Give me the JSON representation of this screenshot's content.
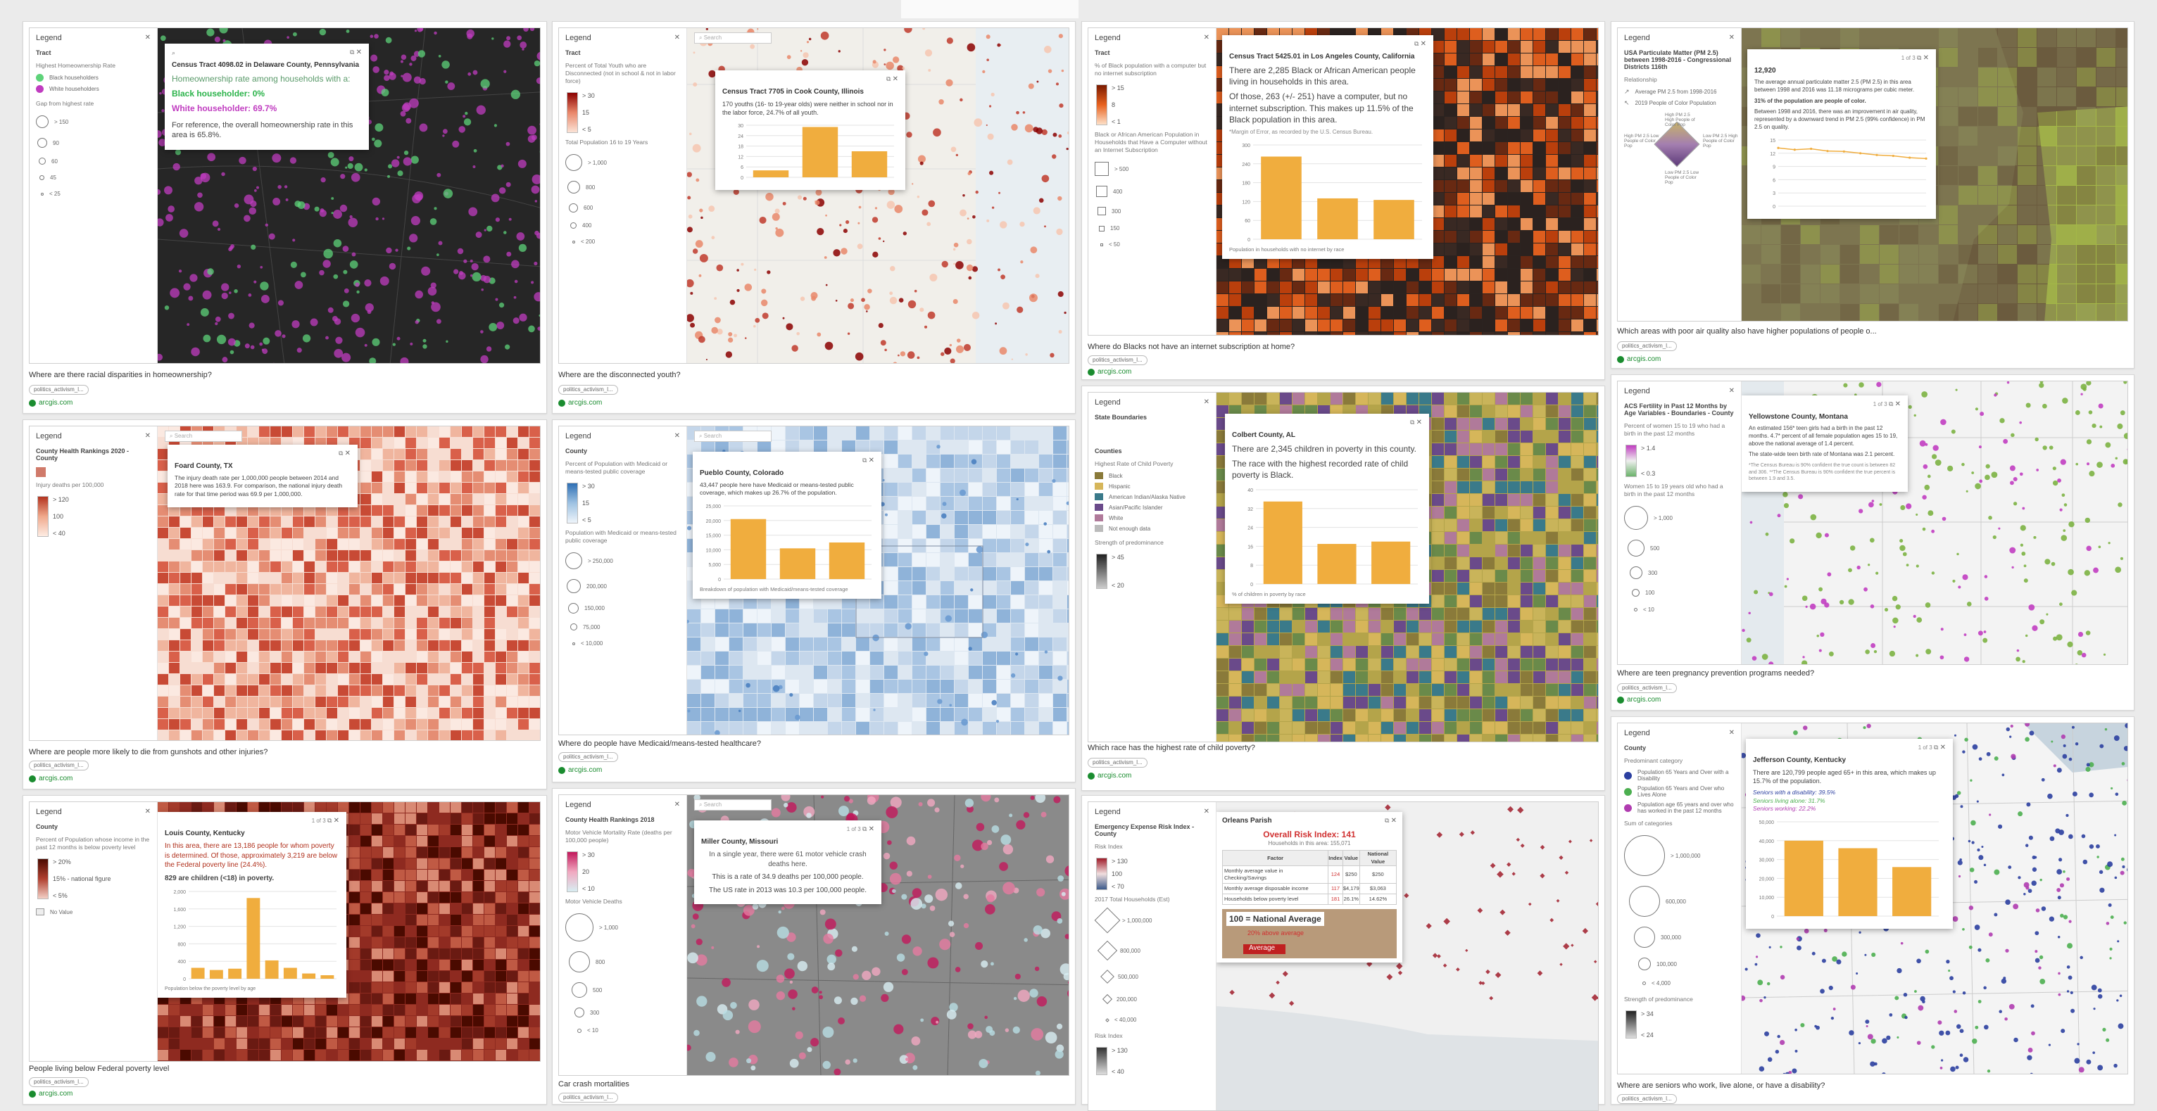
{
  "cards": [
    {
      "caption": "Where are there racial disparities in homeownership?",
      "tag": "politics_activism_l...",
      "link": "arcgis.com",
      "legend": {
        "title": "Legend",
        "layer": "Tract",
        "desc": "Highest Homeownership Rate",
        "items": [
          "Black householders",
          "White householders"
        ],
        "desc2": "Gap from highest rate",
        "sizes": [
          "> 150",
          "90",
          "60",
          "45",
          "< 25"
        ]
      },
      "popup": {
        "title": "Census Tract 4098.02 in Delaware County, Pennsylvania",
        "l1": "Homeownership rate among households with a:",
        "l2": "Black householder: 0%",
        "l3": "White householder: 69.7%",
        "l4": "For reference, the overall homeownership rate in this area is 65.8%."
      }
    },
    {
      "caption": "Where are the disconnected youth?",
      "tag": "politics_activism_l...",
      "link": "arcgis.com",
      "legend": {
        "title": "Legend",
        "layer": "Tract",
        "desc": "Percent of Total Youth who are Disconnected (not in school & not in labor force)",
        "ramp": [
          "> 30",
          "15",
          "< 5"
        ],
        "desc2": "Total Population 16 to 19 Years",
        "sizes": [
          "> 1,000",
          "800",
          "600",
          "400",
          "< 200"
        ]
      },
      "popup": {
        "title": "Census Tract 7705 in Cook County, Illinois",
        "text": "170 youths (16- to 19-year olds) were neither in school nor in the labor force, 24.7% of all youth.",
        "yticks": [
          "30",
          "20",
          "10"
        ]
      }
    },
    {
      "caption": "Where do Blacks not have an internet subscription at home?",
      "tag": "politics_activism_l...",
      "link": "arcgis.com",
      "legend": {
        "title": "Legend",
        "layer": "Tract",
        "desc": "% of Black population with a computer but no internet subscription",
        "ramp": [
          "> 15",
          "8",
          "< 1"
        ],
        "desc2": "Black or African American Population in Households that Have a Computer without an Internet Subscription",
        "sizes": [
          "> 500",
          "400",
          "300",
          "150",
          "< 50"
        ]
      },
      "popup": {
        "title": "Census Tract 5425.01 in Los Angeles County, California",
        "text": "There are 2,285 Black or African American people living in households in this area.",
        "text2": "Of those, 263 (+/- 251) have a computer, but no internet subscription. This makes up 11.5% of the Black population in this area.",
        "note": "*Margin of Error, as recorded by the U.S. Census Bureau.",
        "footer": "Population in households with no internet by race",
        "yticks": [
          "250",
          "200",
          "150",
          "100",
          "50"
        ]
      }
    },
    {
      "caption": "Which areas with poor air quality also have higher populations of people o...",
      "tag": "politics_activism_l...",
      "link": "arcgis.com",
      "legend": {
        "title": "Legend",
        "layer": "USA Particulate Matter (PM 2.5) between 1998-2016 - Congressional Districts 116th",
        "desc": "Relationship",
        "items": [
          "Average PM 2.5 from 1998-2016",
          "2019 People of Color Population"
        ],
        "grid": [
          "High PM 2.5 Low People of Color Pop",
          "High PM 2.5 High People of Color Pop",
          "Low PM 2.5 High People of Color Pop",
          "Low PM 2.5 Low People of Color Pop"
        ]
      },
      "popup": {
        "title": "12,920",
        "text": "The average annual particulate matter 2.5 (PM 2.5) in this area between 1998 and 2016 was 11.18 micrograms per cubic meter.",
        "text2": "31% of the population are people of color.",
        "text3": "Between 1998 and 2016, there was an improvement in air quality, represented by a downward trend in PM 2.5 (99% confidence) in PM 2.5 on quality.",
        "yticks": [
          "10",
          "5"
        ]
      }
    },
    {
      "caption": "Where are people more likely to die from gunshots and other injuries?",
      "tag": "politics_activism_l...",
      "link": "arcgis.com",
      "legend": {
        "title": "Legend",
        "layer": "County Health Rankings 2020 - County",
        "desc": "Injury deaths per 100,000",
        "ramp": [
          "> 120",
          "100",
          "< 40"
        ]
      },
      "popup": {
        "title": "Foard County, TX",
        "text": "The injury death rate per 1,000,000 people between 2014 and 2018 here was 163.9. For comparison, the national injury death rate for that time period was 69.9 per 1,000,000."
      }
    },
    {
      "caption": "Where do people have Medicaid/means-tested healthcare?",
      "tag": "politics_activism_l...",
      "link": "arcgis.com",
      "legend": {
        "title": "Legend",
        "layer": "County",
        "desc": "Percent of Population with Medicaid or means-tested public coverage",
        "ramp": [
          "> 30",
          "15",
          "< 5"
        ],
        "desc2": "Population with Medicaid or means-tested public coverage",
        "sizes": [
          "> 250,000",
          "200,000",
          "150,000",
          "75,000",
          "< 10,000"
        ]
      },
      "popup": {
        "title": "Pueblo County, Colorado",
        "text": "43,447 people here have Medicaid or means-tested public coverage, which makes up 26.7% of the population.",
        "footer": "Breakdown of population with Medicaid/means-tested coverage",
        "yticks": [
          "20,000",
          "15,000",
          "10,000",
          "5,000"
        ]
      }
    },
    {
      "caption": "Which race has the highest rate of child poverty?",
      "tag": "politics_activism_l...",
      "link": "arcgis.com",
      "legend": {
        "title": "Legend",
        "layer": "State Boundaries",
        "layer2": "Counties",
        "desc": "Highest Rate of Child Poverty",
        "items": [
          "Black",
          "Hispanic",
          "American Indian/Alaska Native",
          "Asian/Pacific Islander",
          "White",
          "Not enough data"
        ],
        "desc2": "Strength of predominance",
        "ramp": [
          "> 45",
          "< 20"
        ]
      },
      "popup": {
        "title": "Colbert County, AL",
        "text": "There are 2,345 children in poverty in this county.",
        "text2": "The race with the highest recorded rate of child poverty is Black.",
        "footer": "% of children in poverty by race",
        "yticks": [
          "30",
          "20",
          "10"
        ]
      }
    },
    {
      "caption": "Where are teen pregnancy prevention programs needed?",
      "tag": "politics_activism_l...",
      "link": "arcgis.com",
      "legend": {
        "title": "Legend",
        "layer": "ACS Fertility in Past 12 Months by Age Variables - Boundaries - County",
        "desc": "Percent of women 15 to 19 who had a birth in the past 12 months",
        "ramp": [
          "> 1.4",
          "< 0.3"
        ],
        "desc2": "Women 15 to 19 years old who had a birth in the past 12 months",
        "sizes": [
          "> 1,000",
          "500",
          "300",
          "100",
          "< 10"
        ]
      },
      "popup": {
        "title": "Yellowstone County, Montana",
        "text": "An estimated 156* teen girls had a birth in the past 12 months. 4.7* percent of all female population ages 15 to 19, above the national average of 1.4 percent.",
        "text2": "The state-wide teen birth rate of Montana was 2.1 percent.",
        "note": "*The Census Bureau is 90% confident the true count is between 82 and 306. **The Census Bureau is 90% confident the true percent is between 1.9 and 3.5."
      }
    },
    {
      "caption": "People living below Federal poverty level",
      "tag": "politics_activism_l...",
      "link": "arcgis.com",
      "legend": {
        "title": "Legend",
        "layer": "County",
        "desc": "Percent of Population whose income in the past 12 months is below poverty level",
        "ramp": [
          "> 20%",
          "15% - national figure",
          "< 5%"
        ],
        "items": [
          "No Value"
        ]
      },
      "popup": {
        "title": "Louis County, Kentucky",
        "text": "In this area, there are 13,186 people for whom poverty is determined. Of those, approximately 3,219 are below the Federal poverty line (24.4%).",
        "text2": "829 are children (<18) in poverty.",
        "footer": "Population below the poverty level by age",
        "yticks": [
          "1,500",
          "1,000",
          "500"
        ]
      }
    },
    {
      "caption": "Car crash mortalities",
      "tag": "politics_activism_l...",
      "link": "",
      "legend": {
        "title": "Legend",
        "layer": "County Health Rankings 2018",
        "desc": "Motor Vehicle Mortality Rate (deaths per 100,000 people)",
        "ramp": [
          "> 30",
          "20",
          "< 10"
        ],
        "desc2": "Motor Vehicle Deaths",
        "sizes": [
          "> 1,000",
          "800",
          "500",
          "300",
          "< 10"
        ]
      },
      "popup": {
        "title": "Miller County, Missouri",
        "text": "In a single year, there were 61 motor vehicle crash deaths here.",
        "text2": "This is a rate of 34.9 deaths per 100,000 people.",
        "text3": "The US rate in 2013 was 10.3 per 100,000 people."
      }
    },
    {
      "caption": "",
      "tag": "",
      "link": "",
      "legend": {
        "title": "Legend",
        "layer": "Emergency Expense Risk Index - County",
        "desc": "Risk Index",
        "ramp": [
          "> 130",
          "100",
          "< 70"
        ],
        "desc2": "2017 Total Households (Est)",
        "sizes": [
          "> 1,000,000",
          "800,000",
          "500,000",
          "200,000",
          "< 40,000"
        ],
        "desc3": "Risk Index",
        "ramp2": [
          "> 130",
          "< 40"
        ]
      },
      "popup": {
        "title": "Orleans Parish",
        "head": "Overall Risk Index: 141",
        "sub": "Households in this area: 155,071",
        "cols": [
          "Factor",
          "Index",
          "Value",
          "National Value"
        ],
        "rows": [
          [
            "Monthly average value in Checking/Savings",
            "124",
            "$250",
            "$250"
          ],
          [
            "Monthly average disposable income",
            "117",
            "$4,179",
            "$3,063"
          ],
          [
            "Households below poverty level",
            "181",
            "26.1%",
            "14.62%"
          ]
        ],
        "avg": "100 = National Average",
        "above": "20% above average",
        "avgl": "Average"
      }
    },
    {
      "caption": "Where are seniors who work, live alone, or have a disability?",
      "tag": "politics_activism_l...",
      "link": "",
      "legend": {
        "title": "Legend",
        "layer": "County",
        "desc": "Predominant category",
        "items": [
          "Population 65 Years and Over with a Disability",
          "Population 65 Years and Over who Lives Alone",
          "Population age 65 years and over who has worked in the past 12 months"
        ],
        "desc2": "Sum of categories",
        "sizes": [
          "> 1,000,000",
          "600,000",
          "300,000",
          "100,000",
          "< 4,000"
        ],
        "desc3": "Strength of predominance",
        "ramp": [
          "> 34",
          "< 24"
        ]
      },
      "popup": {
        "title": "Jefferson County, Kentucky",
        "text": "There are 120,799 people aged 65+ in this area, which makes up 15.7% of the population.",
        "l1": "Seniors with a disability: 39.5%",
        "l2": "Seniors living alone: 31.7%",
        "l3": "Seniors working: 22.2%",
        "yticks": [
          "40,000",
          "30,000",
          "20,000",
          "10,000"
        ]
      }
    }
  ],
  "pager": "1 of 3",
  "chart_data": [
    {
      "type": "bar",
      "title": "",
      "categories": [
        "a",
        "b",
        "c"
      ],
      "values": [
        4,
        29,
        15
      ],
      "ylim": [
        0,
        30
      ]
    },
    {
      "type": "bar",
      "title": "Population in households with no internet by race",
      "categories": [
        "a",
        "b",
        "c"
      ],
      "values": [
        263,
        130,
        125
      ],
      "ylim": [
        0,
        300
      ]
    },
    {
      "type": "bar",
      "title": "Breakdown of population with Medicaid/means-tested coverage",
      "categories": [
        "a",
        "b",
        "c"
      ],
      "values": [
        20500,
        10500,
        12500
      ],
      "ylim": [
        0,
        25000
      ]
    },
    {
      "type": "bar",
      "title": "% of children in poverty by race",
      "categories": [
        "a",
        "b",
        "c"
      ],
      "values": [
        35,
        17,
        18
      ],
      "ylim": [
        0,
        40
      ]
    },
    {
      "type": "bar",
      "title": "Population below the poverty level by age",
      "categories": [
        "a",
        "b",
        "c",
        "d",
        "e",
        "f",
        "g",
        "h"
      ],
      "values": [
        250,
        200,
        230,
        1850,
        420,
        250,
        120,
        80
      ],
      "ylim": [
        0,
        2000
      ]
    },
    {
      "type": "bar",
      "title": "",
      "categories": [
        "a",
        "b",
        "c"
      ],
      "values": [
        40000,
        36000,
        26000
      ],
      "ylim": [
        0,
        50000
      ]
    },
    {
      "type": "line",
      "title": "",
      "x": [
        1998,
        2000,
        2002,
        2004,
        2006,
        2008,
        2010,
        2012,
        2014,
        2016
      ],
      "values": [
        13.2,
        12.8,
        13.0,
        12.5,
        12.4,
        12.0,
        11.6,
        11.4,
        11.0,
        10.8
      ],
      "ylim": [
        0,
        15
      ]
    }
  ]
}
